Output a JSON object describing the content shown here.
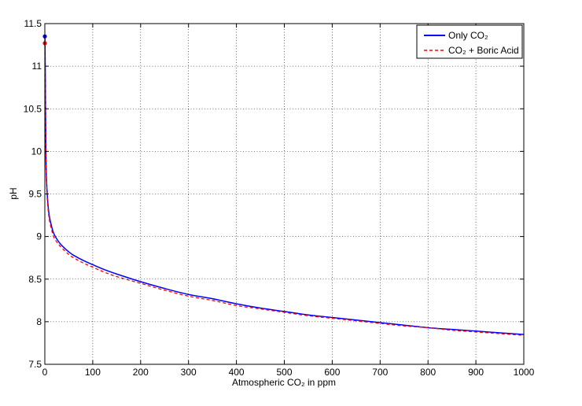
{
  "chart_data": {
    "type": "line",
    "xlabel": "Atmospheric CO₂ in ppm",
    "ylabel": "pH",
    "xlim": [
      0,
      1000
    ],
    "ylim": [
      7.5,
      11.5
    ],
    "x_ticks": [
      0,
      100,
      200,
      300,
      400,
      500,
      600,
      700,
      800,
      900,
      1000
    ],
    "y_ticks": [
      7.5,
      8,
      8.5,
      9,
      9.5,
      10,
      10.5,
      11,
      11.5
    ],
    "grid": true,
    "legend_placement": "top-right",
    "series": [
      {
        "name": "Only CO₂",
        "color": "#0000ff",
        "line_style": "solid",
        "x": [
          0.0,
          0.3,
          1,
          2,
          3,
          5,
          7.5,
          10,
          15,
          20,
          30,
          40,
          50,
          60,
          80,
          100,
          125,
          150,
          200,
          250,
          300,
          350,
          400,
          450,
          500,
          550,
          600,
          650,
          700,
          750,
          800,
          850,
          900,
          950,
          1000
        ],
        "y": [
          11.35,
          11.3,
          10.9,
          10.1,
          9.75,
          9.5,
          9.32,
          9.22,
          9.1,
          9.02,
          8.93,
          8.87,
          8.82,
          8.78,
          8.72,
          8.67,
          8.61,
          8.56,
          8.47,
          8.39,
          8.32,
          8.27,
          8.21,
          8.16,
          8.12,
          8.08,
          8.05,
          8.02,
          7.99,
          7.96,
          7.93,
          7.91,
          7.89,
          7.87,
          7.85
        ]
      },
      {
        "name": "CO₂ + Boric Acid",
        "color": "#ff0000",
        "line_style": "dashed",
        "x": [
          0.0,
          0.3,
          1,
          2,
          3,
          5,
          7.5,
          10,
          15,
          20,
          30,
          40,
          50,
          60,
          80,
          100,
          125,
          150,
          200,
          250,
          300,
          350,
          400,
          450,
          500,
          550,
          600,
          650,
          700,
          750,
          800,
          850,
          900,
          950,
          1000
        ],
        "y": [
          11.27,
          11.2,
          10.8,
          10.0,
          9.7,
          9.45,
          9.28,
          9.18,
          9.06,
          8.98,
          8.9,
          8.84,
          8.79,
          8.75,
          8.69,
          8.64,
          8.58,
          8.53,
          8.45,
          8.37,
          8.3,
          8.25,
          8.19,
          8.15,
          8.11,
          8.07,
          8.04,
          8.01,
          7.98,
          7.95,
          7.93,
          7.9,
          7.88,
          7.86,
          7.84
        ]
      }
    ],
    "markers": [
      {
        "series": "Only CO₂",
        "x": 0,
        "y": 11.35,
        "color": "#0000ff"
      },
      {
        "series": "CO₂ + Boric Acid",
        "x": 0,
        "y": 11.27,
        "color": "#ff0000"
      }
    ]
  }
}
